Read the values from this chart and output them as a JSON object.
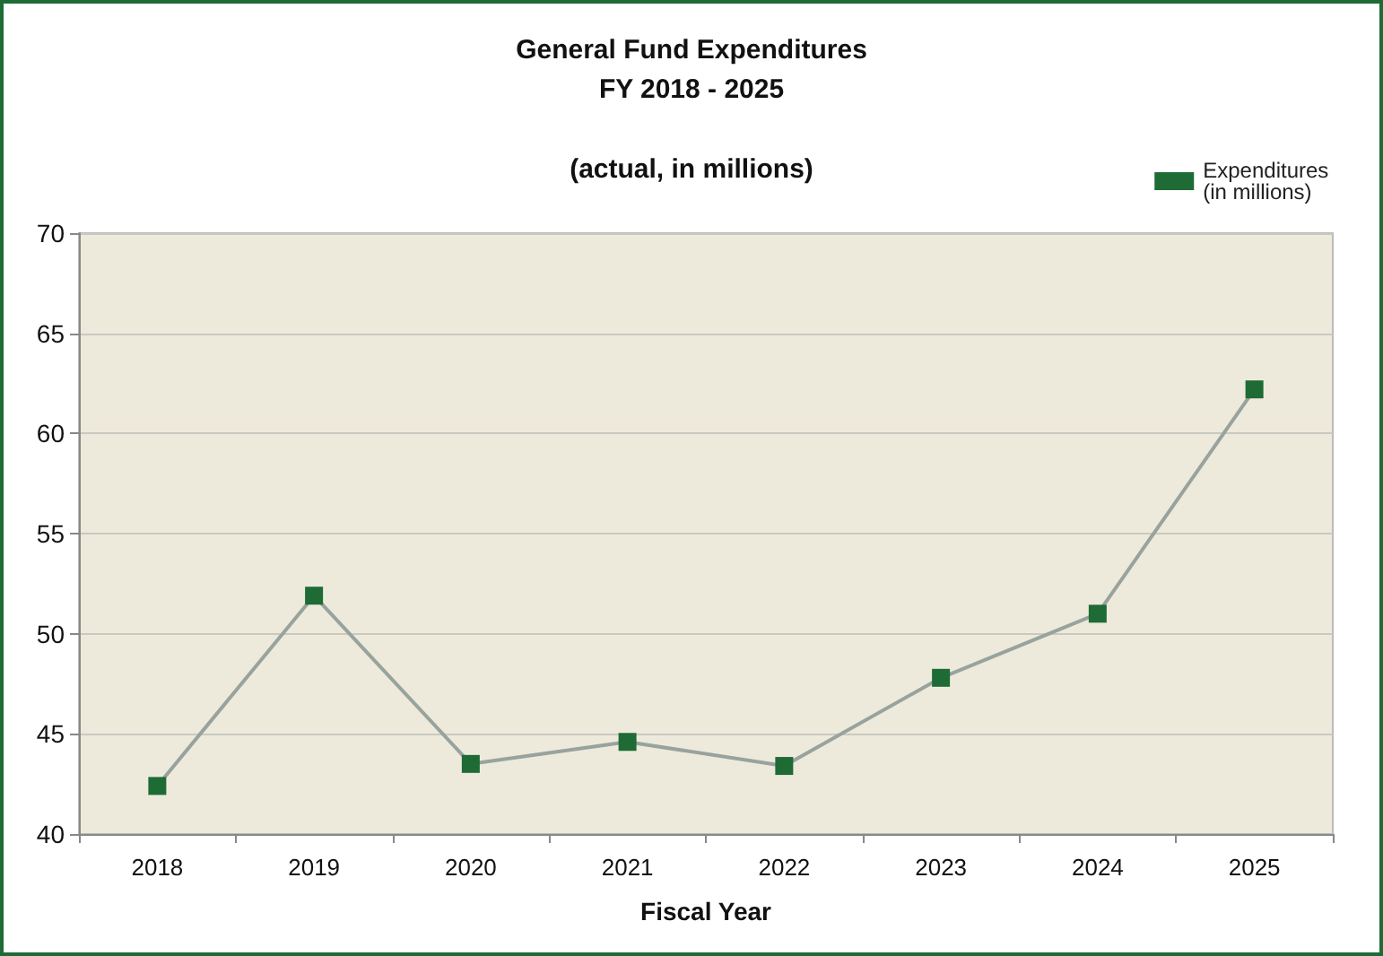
{
  "chart_data": {
    "type": "line",
    "title": "General Fund Expenditures\nFY 2018 - 2025",
    "subtitle": "(actual, in millions)",
    "xlabel": "Fiscal Year",
    "categories": [
      "2018",
      "2019",
      "2020",
      "2021",
      "2022",
      "2023",
      "2024",
      "2025"
    ],
    "series": [
      {
        "name": "Expenditures (in millions)",
        "color": "#1e6b35",
        "values": [
          42.4,
          51.9,
          43.5,
          44.6,
          43.4,
          47.8,
          51.0,
          62.2
        ]
      }
    ],
    "ylim": [
      40,
      70
    ],
    "yticks": [
      40,
      45,
      50,
      55,
      60,
      65,
      70
    ],
    "grid": "y",
    "legend": "top right",
    "marker": "square",
    "line_style": "solid"
  }
}
